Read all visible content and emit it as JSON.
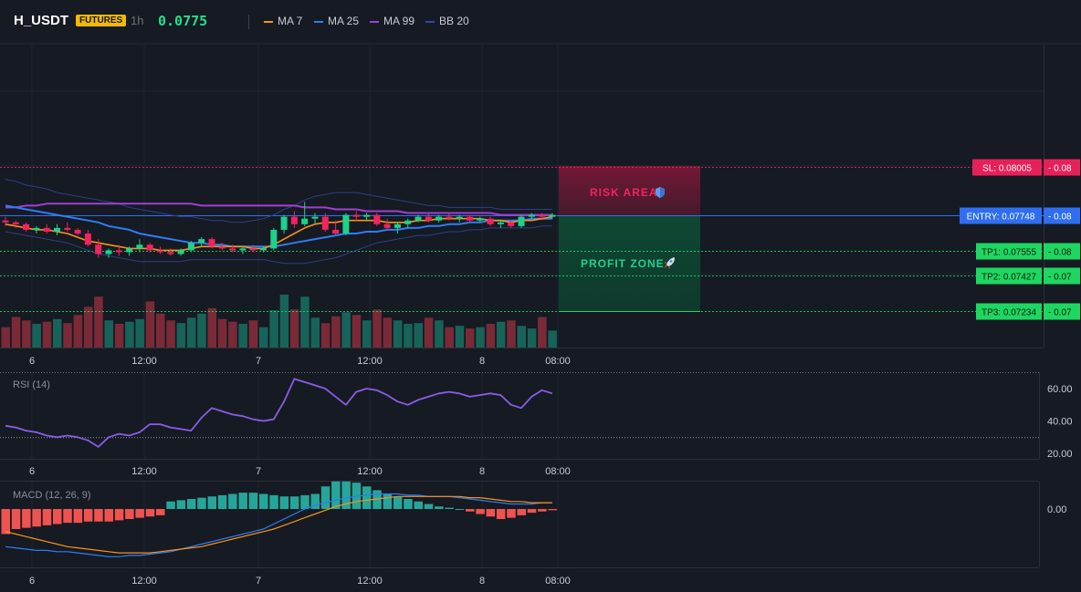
{
  "header": {
    "symbol": "H_USDT",
    "badge": "FUTURES",
    "interval": "1h",
    "price": "0.0775",
    "legend": [
      {
        "label": "MA 7",
        "color": "#f7931a"
      },
      {
        "label": "MA 25",
        "color": "#2f7df6"
      },
      {
        "label": "MA 99",
        "color": "#a13fd1"
      },
      {
        "label": "BB 20",
        "color": "#2d4aa8"
      }
    ]
  },
  "overlays": {
    "risk_label": "RISK AREA",
    "profit_label": "PROFIT ZONE",
    "risk_icon": "shield-icon",
    "profit_icon": "rocket-icon"
  },
  "levels": [
    {
      "name": "sl",
      "label": "SL: 0.08005",
      "axis": "0.08",
      "price": 0.08005,
      "color": "#e8205a"
    },
    {
      "name": "entry",
      "label": "ENTRY: 0.07748",
      "axis": "0.08",
      "price": 0.07748,
      "color": "#2f6ef0"
    },
    {
      "name": "tp1",
      "label": "TP1: 0.07555",
      "axis": "0.08",
      "price": 0.07555,
      "color": "#1ed760"
    },
    {
      "name": "tp2",
      "label": "TP2: 0.07427",
      "axis": "0.07",
      "price": 0.07427,
      "color": "#1ed760"
    },
    {
      "name": "tp3",
      "label": "TP3: 0.07234",
      "axis": "0.07",
      "price": 0.07234,
      "color": "#1ed760"
    }
  ],
  "time_axis": [
    "6",
    "12:00",
    "7",
    "12:00",
    "8",
    "08:00"
  ],
  "colors": {
    "up": "#1fd18c",
    "down": "#f0245f",
    "vol_up": "#17635a",
    "vol_down": "#7a2a37",
    "rsi": "#8b5ce6",
    "macd": "#2f7df6",
    "signal": "#f7931a",
    "hist_up": "#26a69a",
    "hist_down": "#ef5350"
  },
  "chart_data": [
    {
      "type": "candlestick",
      "title": "H_USDT 1h",
      "x_ticks": [
        "6",
        "12:00",
        "7",
        "12:00",
        "8",
        "08:00"
      ],
      "candles": [
        [
          0.0772,
          0.0774,
          0.0769,
          0.0771
        ],
        [
          0.0771,
          0.0772,
          0.0768,
          0.077
        ],
        [
          0.077,
          0.0771,
          0.0766,
          0.0767
        ],
        [
          0.0767,
          0.0769,
          0.0765,
          0.0768
        ],
        [
          0.0768,
          0.077,
          0.0765,
          0.0766
        ],
        [
          0.0766,
          0.077,
          0.0764,
          0.0768
        ],
        [
          0.0768,
          0.0771,
          0.0766,
          0.0767
        ],
        [
          0.0767,
          0.0768,
          0.0764,
          0.0765
        ],
        [
          0.0765,
          0.0767,
          0.0758,
          0.0759
        ],
        [
          0.0759,
          0.0762,
          0.0752,
          0.0754
        ],
        [
          0.0754,
          0.0757,
          0.0752,
          0.0756
        ],
        [
          0.0756,
          0.0759,
          0.0753,
          0.0755
        ],
        [
          0.0755,
          0.0758,
          0.0753,
          0.0757
        ],
        [
          0.0757,
          0.0762,
          0.0755,
          0.0759
        ],
        [
          0.0759,
          0.076,
          0.0755,
          0.0756
        ],
        [
          0.0756,
          0.0758,
          0.0754,
          0.0755
        ],
        [
          0.0755,
          0.0757,
          0.0753,
          0.0754
        ],
        [
          0.0754,
          0.0757,
          0.0753,
          0.0756
        ],
        [
          0.0756,
          0.0761,
          0.0755,
          0.076
        ],
        [
          0.076,
          0.0763,
          0.0758,
          0.0762
        ],
        [
          0.0762,
          0.0763,
          0.0757,
          0.0758
        ],
        [
          0.0758,
          0.076,
          0.0756,
          0.0757
        ],
        [
          0.0757,
          0.0759,
          0.0755,
          0.0756
        ],
        [
          0.0756,
          0.0758,
          0.0754,
          0.0757
        ],
        [
          0.0757,
          0.0759,
          0.0755,
          0.0756
        ],
        [
          0.0756,
          0.0758,
          0.0755,
          0.0757
        ],
        [
          0.0757,
          0.0768,
          0.0756,
          0.0767
        ],
        [
          0.0767,
          0.0775,
          0.0765,
          0.0774
        ],
        [
          0.0774,
          0.0777,
          0.0768,
          0.077
        ],
        [
          0.077,
          0.0782,
          0.0769,
          0.0773
        ],
        [
          0.0773,
          0.0776,
          0.077,
          0.0774
        ],
        [
          0.0774,
          0.0776,
          0.0766,
          0.0767
        ],
        [
          0.0767,
          0.0772,
          0.0764,
          0.0765
        ],
        [
          0.0765,
          0.0776,
          0.0764,
          0.0775
        ],
        [
          0.0775,
          0.0777,
          0.0772,
          0.0774
        ],
        [
          0.0774,
          0.0776,
          0.0772,
          0.0775
        ],
        [
          0.0775,
          0.0776,
          0.0769,
          0.077
        ],
        [
          0.077,
          0.0773,
          0.0767,
          0.0768
        ],
        [
          0.0768,
          0.0771,
          0.0765,
          0.077
        ],
        [
          0.077,
          0.0773,
          0.0768,
          0.0772
        ],
        [
          0.0772,
          0.0775,
          0.0771,
          0.0774
        ],
        [
          0.0774,
          0.0776,
          0.0771,
          0.0772
        ],
        [
          0.0772,
          0.0775,
          0.0771,
          0.0774
        ],
        [
          0.0774,
          0.0776,
          0.0772,
          0.0773
        ],
        [
          0.0773,
          0.0775,
          0.0771,
          0.0774
        ],
        [
          0.0774,
          0.0775,
          0.0771,
          0.0772
        ],
        [
          0.0772,
          0.0774,
          0.0771,
          0.0773
        ],
        [
          0.0773,
          0.0774,
          0.0769,
          0.077
        ],
        [
          0.077,
          0.0772,
          0.0768,
          0.0771
        ],
        [
          0.0771,
          0.0772,
          0.0768,
          0.0769
        ],
        [
          0.0769,
          0.0775,
          0.0768,
          0.0774
        ],
        [
          0.0774,
          0.0776,
          0.0773,
          0.0775
        ],
        [
          0.0775,
          0.0776,
          0.0773,
          0.0774
        ],
        [
          0.0774,
          0.0776,
          0.0773,
          0.0775
        ]
      ],
      "ma7": [
        0.077,
        0.0769,
        0.0768,
        0.0767,
        0.0767,
        0.0766,
        0.0765,
        0.0763,
        0.0761,
        0.076,
        0.0759,
        0.0758,
        0.0757,
        0.0757,
        0.0757,
        0.0756,
        0.0756,
        0.0756,
        0.0757,
        0.0758,
        0.0758,
        0.0758,
        0.0758,
        0.0758,
        0.0757,
        0.0757,
        0.0759,
        0.0762,
        0.0765,
        0.0768,
        0.077,
        0.0771,
        0.0771,
        0.0772,
        0.0772,
        0.0772,
        0.0772,
        0.0771,
        0.0771,
        0.0771,
        0.0772,
        0.0772,
        0.0773,
        0.0773,
        0.0773,
        0.0773,
        0.0773,
        0.0772,
        0.0772,
        0.0771,
        0.0772,
        0.0772,
        0.0773,
        0.0774
      ],
      "ma25": [
        0.078,
        0.0779,
        0.0778,
        0.0777,
        0.0776,
        0.0775,
        0.0774,
        0.0773,
        0.0772,
        0.0771,
        0.0769,
        0.0768,
        0.0767,
        0.0765,
        0.0764,
        0.0763,
        0.0762,
        0.0761,
        0.076,
        0.076,
        0.0759,
        0.0759,
        0.0758,
        0.0758,
        0.0758,
        0.0758,
        0.0758,
        0.0759,
        0.076,
        0.0761,
        0.0762,
        0.0763,
        0.0764,
        0.0765,
        0.0765,
        0.0766,
        0.0766,
        0.0767,
        0.0767,
        0.0768,
        0.0768,
        0.0769,
        0.0769,
        0.077,
        0.077,
        0.0771,
        0.0771,
        0.0772,
        0.0772,
        0.0772,
        0.0772,
        0.0773,
        0.0773,
        0.0773
      ],
      "ma99": [
        0.0779,
        0.0779,
        0.078,
        0.078,
        0.0781,
        0.0781,
        0.0781,
        0.0781,
        0.0781,
        0.0781,
        0.0781,
        0.0781,
        0.0781,
        0.0781,
        0.0781,
        0.0781,
        0.0781,
        0.0781,
        0.0781,
        0.078,
        0.078,
        0.078,
        0.078,
        0.078,
        0.078,
        0.078,
        0.078,
        0.078,
        0.078,
        0.0779,
        0.0779,
        0.0779,
        0.0778,
        0.0778,
        0.0778,
        0.0777,
        0.0777,
        0.0777,
        0.0777,
        0.0776,
        0.0776,
        0.0776,
        0.0776,
        0.0776,
        0.0776,
        0.0776,
        0.0776,
        0.0776,
        0.0775,
        0.0775,
        0.0775,
        0.0775,
        0.0775,
        0.0775
      ],
      "bb_upper": [
        0.0794,
        0.0793,
        0.0791,
        0.079,
        0.0789,
        0.0787,
        0.0786,
        0.0785,
        0.0784,
        0.0783,
        0.0782,
        0.0781,
        0.0779,
        0.0778,
        0.0777,
        0.0776,
        0.0775,
        0.0774,
        0.0774,
        0.0773,
        0.0772,
        0.0772,
        0.0771,
        0.0771,
        0.0772,
        0.0773,
        0.0775,
        0.0778,
        0.078,
        0.0783,
        0.0785,
        0.0786,
        0.0787,
        0.0787,
        0.0787,
        0.0786,
        0.0785,
        0.0784,
        0.0783,
        0.0782,
        0.0781,
        0.078,
        0.078,
        0.0779,
        0.0779,
        0.0779,
        0.0779,
        0.0779,
        0.0778,
        0.0778,
        0.0778,
        0.0778,
        0.0778,
        0.0778
      ],
      "bb_lower": [
        0.0766,
        0.0765,
        0.0764,
        0.0763,
        0.0762,
        0.0761,
        0.076,
        0.0758,
        0.0756,
        0.0754,
        0.0753,
        0.0752,
        0.0751,
        0.075,
        0.075,
        0.075,
        0.075,
        0.075,
        0.0751,
        0.0751,
        0.0751,
        0.0751,
        0.0751,
        0.0751,
        0.0751,
        0.0751,
        0.075,
        0.0749,
        0.0749,
        0.0749,
        0.075,
        0.0751,
        0.0752,
        0.0754,
        0.0756,
        0.0758,
        0.076,
        0.0761,
        0.0762,
        0.0763,
        0.0764,
        0.0764,
        0.0765,
        0.0766,
        0.0766,
        0.0767,
        0.0767,
        0.0768,
        0.0768,
        0.0768,
        0.0768,
        0.0768,
        0.0769,
        0.0769
      ],
      "volume": [
        30,
        45,
        40,
        35,
        38,
        42,
        36,
        48,
        60,
        75,
        40,
        35,
        38,
        42,
        68,
        50,
        40,
        36,
        44,
        50,
        58,
        42,
        38,
        35,
        40,
        30,
        55,
        78,
        56,
        75,
        44,
        36,
        46,
        52,
        48,
        40,
        56,
        44,
        40,
        35,
        36,
        44,
        40,
        30,
        32,
        28,
        30,
        35,
        38,
        40,
        32,
        28,
        45,
        25
      ]
    },
    {
      "type": "line",
      "title": "RSI (14)",
      "y_ticks": [
        "60.00",
        "40.00",
        "20.00"
      ],
      "ylim": [
        15,
        65
      ],
      "values": [
        37,
        36,
        34,
        33,
        31,
        30,
        31,
        30,
        28,
        24,
        30,
        32,
        31,
        33,
        38,
        38,
        36,
        35,
        34,
        42,
        48,
        46,
        44,
        43,
        41,
        40,
        41,
        52,
        66,
        64,
        62,
        60,
        55,
        50,
        58,
        60,
        59,
        56,
        52,
        50,
        53,
        55,
        57,
        58,
        57,
        55,
        56,
        57,
        56,
        50,
        48,
        55,
        59,
        57
      ]
    },
    {
      "type": "line",
      "title": "MACD (12, 26, 9)",
      "y_ticks": [
        "0.00"
      ],
      "series": [
        {
          "values": [
            -0.0003,
            -0.00031,
            -0.00032,
            -0.00033,
            -0.00033,
            -0.00034,
            -0.00034,
            -0.00035,
            -0.00036,
            -0.00037,
            -0.00038,
            -0.00038,
            -0.00037,
            -0.00037,
            -0.00036,
            -0.00035,
            -0.00034,
            -0.00032,
            -0.0003,
            -0.00028,
            -0.00026,
            -0.00024,
            -0.00022,
            -0.0002,
            -0.00018,
            -0.00016,
            -0.00012,
            -8e-05,
            -4e-05,
            0.0,
            3e-05,
            5e-05,
            7e-05,
            9e-05,
            0.0001,
            0.00011,
            0.00012,
            0.00012,
            0.00012,
            0.00011,
            0.00011,
            0.0001,
            0.0001,
            0.0001,
            9e-05,
            8e-05,
            7e-05,
            6e-05,
            5e-05,
            4e-05,
            4e-05,
            4e-05,
            5e-05,
            5e-05
          ]
        },
        {
          "values": [
            -0.00018,
            -0.0002,
            -0.00022,
            -0.00024,
            -0.00026,
            -0.00028,
            -0.0003,
            -0.00031,
            -0.00032,
            -0.00033,
            -0.00034,
            -0.00035,
            -0.00035,
            -0.00035,
            -0.00035,
            -0.00034,
            -0.00033,
            -0.00032,
            -0.00031,
            -0.0003,
            -0.00028,
            -0.00026,
            -0.00024,
            -0.00022,
            -0.0002,
            -0.00018,
            -0.00016,
            -0.00013,
            -0.0001,
            -7e-05,
            -4e-05,
            -1e-05,
            2e-05,
            4e-05,
            6e-05,
            7e-05,
            8e-05,
            9e-05,
            0.0001,
            0.0001,
            0.0001,
            0.0001,
            0.0001,
            0.0001,
            0.0001,
            9e-05,
            9e-05,
            8e-05,
            7e-05,
            6e-05,
            6e-05,
            5e-05,
            5e-05,
            5e-05
          ]
        }
      ],
      "histogram": [
        -0.0002,
        -0.00016,
        -0.00015,
        -0.00014,
        -0.00013,
        -0.00012,
        -0.00011,
        -0.00011,
        -0.0001,
        -0.0001,
        -0.0001,
        -9e-05,
        -8e-05,
        -7e-05,
        -6e-05,
        -5e-05,
        6e-05,
        7e-05,
        8e-05,
        9e-05,
        0.0001,
        0.00011,
        0.00012,
        0.00013,
        0.00013,
        0.00012,
        0.00011,
        0.0001,
        0.0001,
        0.00011,
        0.00012,
        0.00018,
        0.00022,
        0.00022,
        0.00021,
        0.00018,
        0.00015,
        0.00012,
        0.0001,
        8e-05,
        6e-05,
        4e-05,
        2e-05,
        1e-05,
        0.0,
        -2e-05,
        -4e-05,
        -6e-05,
        -8e-05,
        -7e-05,
        -5e-05,
        -3e-05,
        -2e-05,
        -1e-05
      ]
    }
  ]
}
